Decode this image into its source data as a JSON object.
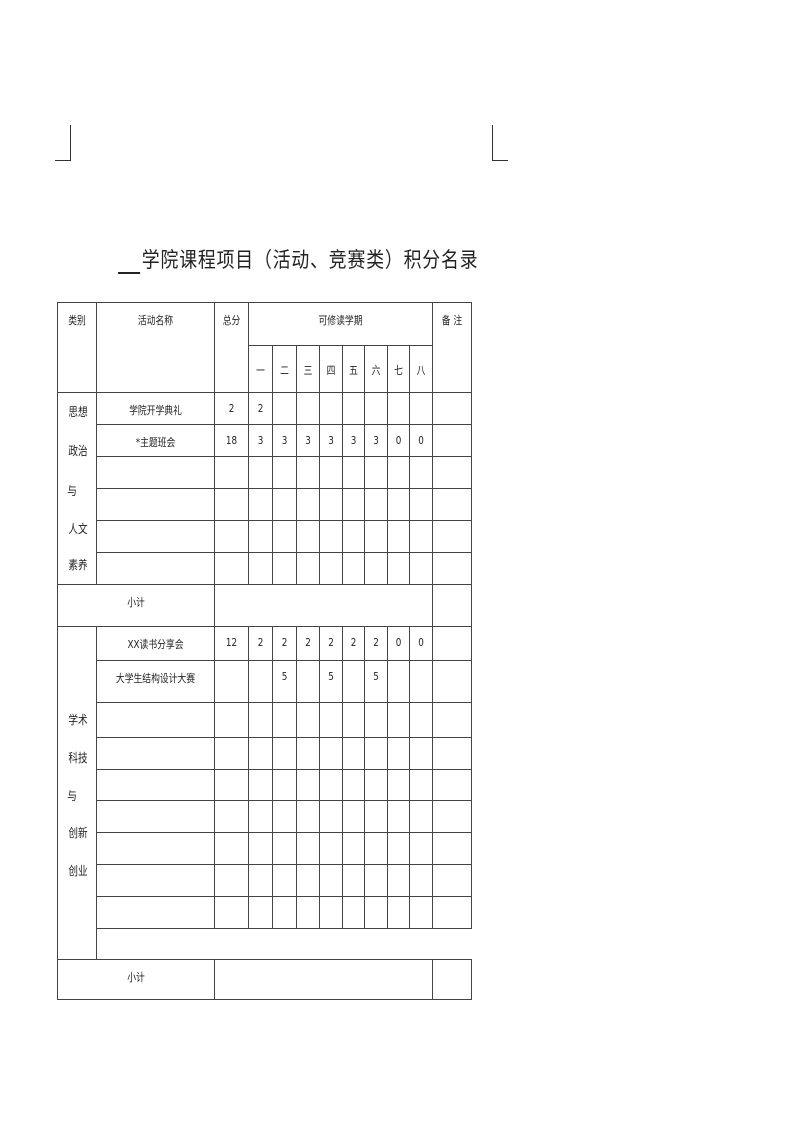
{
  "title": "学院课程项目（活动、竞赛类）积分名录",
  "headers": {
    "category": "类别",
    "activity": "活动名称",
    "total": "总分",
    "semesters": "可修读学期",
    "remarks": "备 注",
    "semester_labels": [
      "一",
      "二",
      "三",
      "四",
      "五",
      "六",
      "七",
      "八"
    ]
  },
  "sections": [
    {
      "category_lines": [
        "思想",
        "政治",
        "与",
        "人文",
        "素养"
      ],
      "rows": [
        {
          "name": "学院开学典礼",
          "total": "2",
          "sem": [
            "2",
            "",
            "",
            "",
            "",
            "",
            "",
            ""
          ]
        },
        {
          "name": "*主题班会",
          "total": "18",
          "sem": [
            "3",
            "3",
            "3",
            "3",
            "3",
            "3",
            "0",
            "0"
          ]
        },
        {
          "name": "",
          "total": "",
          "sem": [
            "",
            "",
            "",
            "",
            "",
            "",
            "",
            ""
          ]
        },
        {
          "name": "",
          "total": "",
          "sem": [
            "",
            "",
            "",
            "",
            "",
            "",
            "",
            ""
          ]
        },
        {
          "name": "",
          "total": "",
          "sem": [
            "",
            "",
            "",
            "",
            "",
            "",
            "",
            ""
          ]
        },
        {
          "name": "",
          "total": "",
          "sem": [
            "",
            "",
            "",
            "",
            "",
            "",
            "",
            ""
          ]
        }
      ],
      "subtotal_label": "小计"
    },
    {
      "category_lines": [
        "学术",
        "科技",
        "与",
        "创新",
        "创业"
      ],
      "rows": [
        {
          "name": "XX读书分享会",
          "total": "12",
          "sem": [
            "2",
            "2",
            "2",
            "2",
            "2",
            "2",
            "0",
            "0"
          ]
        },
        {
          "name": "大学生结构设计大赛",
          "total": "",
          "sem": [
            "",
            "5",
            "",
            "5",
            "",
            "5",
            "",
            ""
          ]
        },
        {
          "name": "",
          "total": "",
          "sem": [
            "",
            "",
            "",
            "",
            "",
            "",
            "",
            ""
          ]
        },
        {
          "name": "",
          "total": "",
          "sem": [
            "",
            "",
            "",
            "",
            "",
            "",
            "",
            ""
          ]
        },
        {
          "name": "",
          "total": "",
          "sem": [
            "",
            "",
            "",
            "",
            "",
            "",
            "",
            ""
          ]
        },
        {
          "name": "",
          "total": "",
          "sem": [
            "",
            "",
            "",
            "",
            "",
            "",
            "",
            ""
          ]
        },
        {
          "name": "",
          "total": "",
          "sem": [
            "",
            "",
            "",
            "",
            "",
            "",
            "",
            ""
          ]
        },
        {
          "name": "",
          "total": "",
          "sem": [
            "",
            "",
            "",
            "",
            "",
            "",
            "",
            ""
          ]
        },
        {
          "name": "",
          "total": "",
          "sem": [
            "",
            "",
            "",
            "",
            "",
            "",
            "",
            ""
          ]
        }
      ],
      "subtotal_label": "小计"
    }
  ]
}
